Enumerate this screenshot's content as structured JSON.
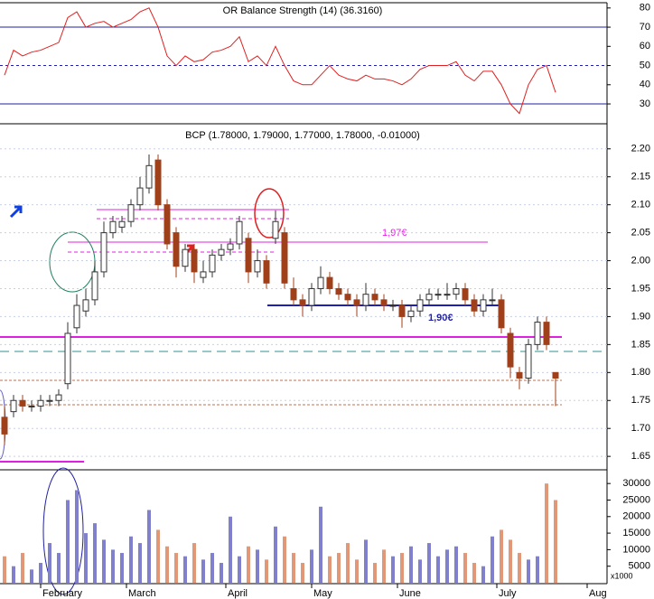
{
  "chart_data": [
    {
      "type": "line",
      "title": "OR Balance Strength (14) (36.3160)",
      "x": [
        0,
        2,
        4,
        6,
        8,
        10,
        12,
        14,
        16,
        18,
        20,
        22,
        24,
        26,
        28,
        30,
        32,
        34,
        36,
        38,
        40,
        42,
        44,
        46,
        48,
        50,
        52,
        54,
        56,
        58,
        60,
        62,
        64,
        66,
        68,
        70,
        72,
        74,
        76,
        78,
        80,
        82,
        84,
        86,
        88,
        90,
        92,
        94,
        96,
        98,
        100,
        102,
        104,
        106,
        108,
        110,
        112,
        114,
        116,
        118,
        120,
        122
      ],
      "values": [
        45,
        58,
        55,
        57,
        58,
        60,
        62,
        75,
        78,
        70,
        72,
        73,
        70,
        72,
        74,
        78,
        80,
        70,
        55,
        50,
        55,
        52,
        53,
        57,
        58,
        60,
        65,
        52,
        55,
        50,
        60,
        50,
        42,
        40,
        40,
        45,
        50,
        45,
        43,
        42,
        45,
        43,
        43,
        42,
        40,
        43,
        48,
        50,
        50,
        50,
        52,
        45,
        42,
        47,
        47,
        40,
        30,
        25,
        40,
        48,
        50,
        36
      ],
      "color": "#e02020",
      "ylim": [
        20.6,
        81.8
      ],
      "yticks": [
        30,
        40,
        50,
        60,
        70,
        80
      ]
    },
    {
      "type": "candlestick",
      "title": "BCP (1.78000, 1.79000, 1.77000, 1.78000, -0.01000)",
      "x": [
        0,
        2,
        4,
        6,
        8,
        10,
        12,
        14,
        16,
        18,
        20,
        22,
        24,
        26,
        28,
        30,
        32,
        34,
        36,
        38,
        40,
        42,
        44,
        46,
        48,
        50,
        52,
        54,
        56,
        58,
        60,
        62,
        64,
        66,
        68,
        70,
        72,
        74,
        76,
        78,
        80,
        82,
        84,
        86,
        88,
        90,
        92,
        94,
        96,
        98,
        100,
        102,
        104,
        106,
        108,
        110,
        112,
        114,
        116,
        118,
        120,
        122
      ],
      "open": [
        1.72,
        1.73,
        1.75,
        1.74,
        1.74,
        1.75,
        1.75,
        1.78,
        1.88,
        1.91,
        1.93,
        1.98,
        2.05,
        2.06,
        2.07,
        2.1,
        2.13,
        2.18,
        2.1,
        2.05,
        1.99,
        2.02,
        1.97,
        1.98,
        2.01,
        2.02,
        2.03,
        2.04,
        1.98,
        2.0,
        2.04,
        2.05,
        1.95,
        1.93,
        1.92,
        1.95,
        1.97,
        1.95,
        1.94,
        1.93,
        1.92,
        1.94,
        1.93,
        1.92,
        1.92,
        1.9,
        1.91,
        1.93,
        1.94,
        1.94,
        1.94,
        1.95,
        1.93,
        1.91,
        1.93,
        1.93,
        1.87,
        1.8,
        1.79,
        1.85,
        1.89,
        1.8
      ],
      "high": [
        1.74,
        1.76,
        1.76,
        1.75,
        1.76,
        1.76,
        1.77,
        1.89,
        1.94,
        1.95,
        2.0,
        2.07,
        2.08,
        2.08,
        2.11,
        2.15,
        2.19,
        2.19,
        2.11,
        2.06,
        2.03,
        2.03,
        2.0,
        2.02,
        2.03,
        2.04,
        2.08,
        2.05,
        2.02,
        2.01,
        2.09,
        2.06,
        1.97,
        1.94,
        1.96,
        1.99,
        1.98,
        1.96,
        1.95,
        1.94,
        1.96,
        1.95,
        1.94,
        1.93,
        1.93,
        1.92,
        1.94,
        1.95,
        1.95,
        1.96,
        1.96,
        1.96,
        1.94,
        1.94,
        1.95,
        1.94,
        1.88,
        1.81,
        1.86,
        1.9,
        1.9,
        1.8
      ],
      "low": [
        1.67,
        1.72,
        1.73,
        1.73,
        1.73,
        1.74,
        1.74,
        1.77,
        1.87,
        1.9,
        1.92,
        1.97,
        2.04,
        2.05,
        2.06,
        2.09,
        2.12,
        2.09,
        2.02,
        1.97,
        1.98,
        1.96,
        1.96,
        1.97,
        2.0,
        2.01,
        2.02,
        1.96,
        1.97,
        1.95,
        2.03,
        1.95,
        1.92,
        1.9,
        1.91,
        1.94,
        1.94,
        1.93,
        1.92,
        1.9,
        1.91,
        1.92,
        1.91,
        1.91,
        1.88,
        1.89,
        1.9,
        1.92,
        1.93,
        1.93,
        1.93,
        1.92,
        1.9,
        1.9,
        1.92,
        1.87,
        1.79,
        1.77,
        1.78,
        1.84,
        1.84,
        1.74
      ],
      "close": [
        1.69,
        1.75,
        1.74,
        1.74,
        1.75,
        1.75,
        1.76,
        1.87,
        1.92,
        1.93,
        1.98,
        2.05,
        2.07,
        2.07,
        2.1,
        2.13,
        2.17,
        2.1,
        2.03,
        1.99,
        2.02,
        1.98,
        1.98,
        2.01,
        2.02,
        2.03,
        2.07,
        1.98,
        2.0,
        1.96,
        2.07,
        1.96,
        1.93,
        1.92,
        1.95,
        1.97,
        1.95,
        1.94,
        1.93,
        1.92,
        1.94,
        1.93,
        1.92,
        1.92,
        1.9,
        1.91,
        1.93,
        1.94,
        1.94,
        1.94,
        1.95,
        1.93,
        1.91,
        1.93,
        1.93,
        1.88,
        1.81,
        1.79,
        1.85,
        1.89,
        1.85,
        1.79
      ],
      "up_color": "#ffffff",
      "down_color": "#a0401a",
      "ylim": [
        1.626,
        2.24
      ],
      "yticks": [
        1.65,
        {
          "value": 1.7,
          "label": "1.70"
        },
        1.75,
        {
          "value": 1.8,
          "label": "1.80"
        },
        1.85,
        {
          "value": 1.9,
          "label": "1.90"
        },
        1.95,
        {
          "value": 2.0,
          "label": "2.00"
        },
        2.05,
        {
          "value": 2.1,
          "label": "2.10"
        },
        2.15,
        {
          "value": 2.2,
          "label": "2.20"
        }
      ],
      "annotations": [
        "1,97€",
        "1,90€"
      ]
    },
    {
      "type": "bar",
      "unit_label": "x1000",
      "x": [
        0,
        2,
        4,
        6,
        8,
        10,
        12,
        14,
        16,
        18,
        20,
        22,
        24,
        26,
        28,
        30,
        32,
        34,
        36,
        38,
        40,
        42,
        44,
        46,
        48,
        50,
        52,
        54,
        56,
        58,
        60,
        62,
        64,
        66,
        68,
        70,
        72,
        74,
        76,
        78,
        80,
        82,
        84,
        86,
        88,
        90,
        92,
        94,
        96,
        98,
        100,
        102,
        104,
        106,
        108,
        110,
        112,
        114,
        116,
        118,
        120,
        122
      ],
      "values": [
        8000,
        5000,
        9000,
        4000,
        6000,
        12000,
        9000,
        25000,
        28000,
        15000,
        18000,
        13000,
        10000,
        9000,
        14000,
        12000,
        22000,
        16000,
        11000,
        9000,
        8000,
        12000,
        7000,
        9000,
        6000,
        20000,
        8000,
        11000,
        10000,
        7000,
        17000,
        14000,
        9000,
        6000,
        10000,
        23000,
        8000,
        9000,
        12000,
        7000,
        13000,
        6000,
        10000,
        8000,
        9000,
        11000,
        7000,
        12000,
        8000,
        10000,
        11000,
        9000,
        6000,
        5000,
        14000,
        16000,
        13000,
        9000,
        7000,
        8000,
        30000,
        25000
      ],
      "up_color": "#8080cc",
      "down_color": "#e09878",
      "ylim": [
        0,
        33600
      ],
      "yticks": [
        5000,
        10000,
        15000,
        20000,
        25000,
        30000
      ],
      "xlim": [
        -1,
        133.4
      ],
      "xticks": [
        {
          "value": 8,
          "label": "February"
        },
        {
          "value": 27,
          "label": "March"
        },
        {
          "value": 49,
          "label": "April"
        },
        {
          "value": 68,
          "label": "May"
        },
        {
          "value": 87,
          "label": "June"
        },
        {
          "value": 109,
          "label": "July"
        },
        {
          "value": 129,
          "label": "Aug"
        }
      ]
    }
  ]
}
